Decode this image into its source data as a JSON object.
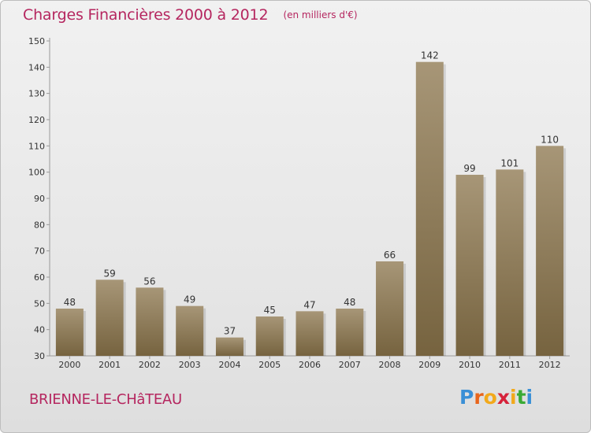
{
  "header": {
    "title": "Charges Financières 2000 à 2012",
    "unit": "(en milliers d'€)"
  },
  "footer": {
    "place": "BRIENNE-LE-CHâTEAU",
    "logo_text": "Proxiti"
  },
  "colors": {
    "accent": "#b5265f",
    "bar_top": "#a79677",
    "bar_bottom": "#76633f",
    "logo_letters": [
      "#3a8fd6",
      "#e8651c",
      "#f2a91b",
      "#d6223a",
      "#f2a91b",
      "#3aaa35",
      "#3a8fd6"
    ]
  },
  "chart_data": {
    "type": "bar",
    "title": "Charges Financières 2000 à 2012",
    "subtitle": "(en milliers d'€)",
    "categories": [
      "2000",
      "2001",
      "2002",
      "2003",
      "2004",
      "2005",
      "2006",
      "2007",
      "2008",
      "2009",
      "2010",
      "2011",
      "2012"
    ],
    "values": [
      48,
      59,
      56,
      49,
      37,
      45,
      47,
      48,
      66,
      142,
      99,
      101,
      110
    ],
    "ylim": [
      30,
      150
    ],
    "yticks": [
      30,
      40,
      50,
      60,
      70,
      80,
      90,
      100,
      110,
      120,
      130,
      140,
      150
    ],
    "grid": false,
    "data_labels": true
  }
}
